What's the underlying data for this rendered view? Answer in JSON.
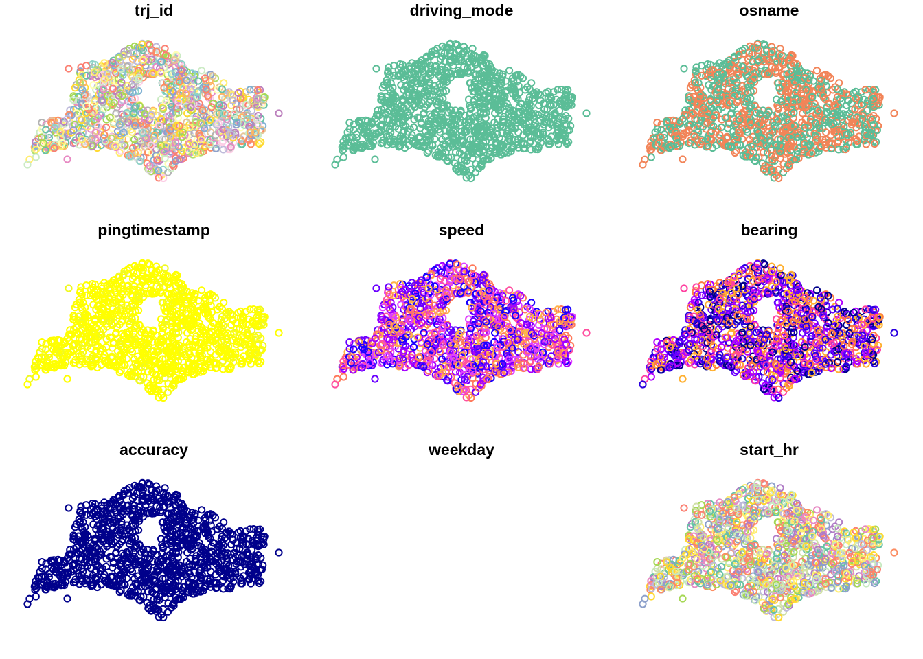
{
  "chart_data": [
    {
      "type": "scatter",
      "title": "trj_id",
      "legend": "none",
      "grid": false,
      "color_style": "categorical",
      "palette": [
        "#66c2a5",
        "#fc8d62",
        "#8da0cb",
        "#e78ac3",
        "#a6d854",
        "#ffd92f",
        "#e5c494",
        "#b3b3b3",
        "#8dd3c7",
        "#ffffb3",
        "#bebada",
        "#fb8072",
        "#80b1d3",
        "#fdb462",
        "#b3de69",
        "#fccde5",
        "#d9d9d9",
        "#bc80bd",
        "#ccebc5",
        "#ffed6f"
      ]
    },
    {
      "type": "scatter",
      "title": "driving_mode",
      "legend": "none",
      "grid": false,
      "color_style": "categorical",
      "palette": [
        "#5bbd97"
      ]
    },
    {
      "type": "scatter",
      "title": "osname",
      "legend": "none",
      "grid": false,
      "color_style": "categorical",
      "palette": [
        "#5bbd97",
        "#f28458"
      ]
    },
    {
      "type": "scatter",
      "title": "pingtimestamp",
      "legend": "none",
      "grid": false,
      "color_style": "sequential",
      "palette": [
        "#0d0887",
        "#7e03a8",
        "#cc4778",
        "#f89540",
        "#f0f921",
        "#ffff00"
      ]
    },
    {
      "type": "scatter",
      "title": "speed",
      "legend": "none",
      "grid": false,
      "color_style": "sequential",
      "palette": [
        "#1a00ff",
        "#6a00ff",
        "#a400ff",
        "#e040ff",
        "#ff4fa0",
        "#ff7a5c",
        "#ffb347"
      ]
    },
    {
      "type": "scatter",
      "title": "bearing",
      "legend": "none",
      "grid": false,
      "color_style": "sequential",
      "palette": [
        "#00008b",
        "#2a00e0",
        "#6a00ff",
        "#b000ff",
        "#ff40a0",
        "#ff7a40",
        "#ffb030"
      ]
    },
    {
      "type": "scatter",
      "title": "accuracy",
      "legend": "none",
      "grid": false,
      "color_style": "single",
      "palette": [
        "#00008b"
      ]
    },
    {
      "type": "scatter",
      "title": "weekday",
      "legend": "none",
      "grid": false,
      "color_style": "empty",
      "palette": []
    },
    {
      "type": "scatter",
      "title": "start_hr",
      "legend": "none",
      "grid": false,
      "color_style": "categorical",
      "palette": [
        "#c7e9c0",
        "#b07cc6",
        "#a6d854",
        "#ffed6f",
        "#e78ac3",
        "#8da0cb",
        "#fc8d62",
        "#66c2a5",
        "#ffd92f",
        "#bebada",
        "#fb8072",
        "#d0e0a8"
      ]
    }
  ]
}
